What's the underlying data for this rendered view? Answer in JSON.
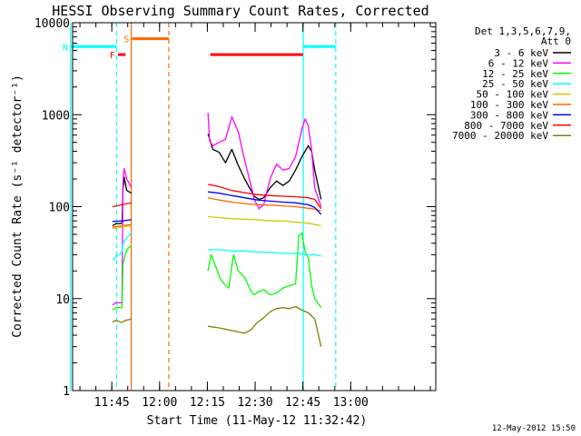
{
  "chart_data": {
    "type": "line",
    "title": "HESSI Observing Summary Count Rates, Corrected",
    "ylabel": "Corrected Count Rate (s⁻¹ detector⁻¹)",
    "xlabel": "Start Time (11-May-12 11:32:42)",
    "x_unit": "minutes since 11:32:42",
    "xlim": [
      0,
      114
    ],
    "ylim": [
      1,
      10000
    ],
    "yscale": "log",
    "xticks": [
      {
        "label": "11:45",
        "x": 12.3
      },
      {
        "label": "12:00",
        "x": 27.3
      },
      {
        "label": "12:15",
        "x": 42.3
      },
      {
        "label": "12:30",
        "x": 57.3
      },
      {
        "label": "12:45",
        "x": 72.3
      },
      {
        "label": "13:00",
        "x": 87.3
      }
    ],
    "yticks": [
      {
        "label": "1",
        "y": 1
      },
      {
        "label": "10",
        "y": 10
      },
      {
        "label": "100",
        "y": 100
      },
      {
        "label": "1000",
        "y": 1000
      },
      {
        "label": "10000",
        "y": 10000
      }
    ],
    "legend_title": "Det 1,3,5,6,7,9,\nAtt 0",
    "legend_placement": "right",
    "timestamp": "12-May-2012 15:50",
    "series": [
      {
        "name": "3 - 6 keV",
        "color": "#000000",
        "segments": [
          {
            "x": [
              12.5,
              13.5,
              15.5,
              15.8,
              16.2,
              17,
              18.5
            ],
            "y": [
              62,
              65,
              66,
              150,
              210,
              150,
              140
            ]
          },
          {
            "x": [
              42.5,
              44,
              46,
              48,
              50,
              52,
              54,
              56,
              57,
              58.5,
              60,
              62,
              64,
              66,
              68,
              70,
              72,
              74,
              75,
              76,
              78
            ],
            "y": [
              620,
              420,
              390,
              300,
              420,
              280,
              200,
              150,
              130,
              120,
              125,
              160,
              190,
              170,
              190,
              250,
              350,
              460,
              400,
              250,
              120
            ]
          }
        ]
      },
      {
        "name": "6 - 12 keV",
        "color": "#ff00ff",
        "segments": [
          {
            "x": [
              12.5,
              13.5,
              15.5,
              15.8,
              16.2,
              17,
              18.5
            ],
            "y": [
              8.5,
              9,
              9,
              180,
              260,
              200,
              160
            ]
          },
          {
            "x": [
              42.5,
              43,
              44,
              46,
              48,
              50,
              52,
              54,
              56,
              57,
              58.5,
              60,
              62,
              64,
              66,
              68,
              70,
              72,
              73,
              74,
              75,
              76,
              78
            ],
            "y": [
              1050,
              520,
              460,
              500,
              540,
              950,
              650,
              320,
              170,
              120,
              95,
              105,
              200,
              290,
              250,
              260,
              350,
              700,
              900,
              750,
              420,
              160,
              100
            ]
          }
        ]
      },
      {
        "name": "12 - 25 keV",
        "color": "#00ff00",
        "segments": [
          {
            "x": [
              12.5,
              13.5,
              15.5,
              15.8,
              17,
              18.5
            ],
            "y": [
              7.5,
              8,
              8,
              24,
              34,
              38
            ]
          },
          {
            "x": [
              42.5,
              43.5,
              45,
              46.5,
              48,
              49,
              50.5,
              52,
              54,
              56,
              57,
              58.5,
              60,
              62,
              64,
              66,
              68,
              70,
              71,
              72,
              73,
              74,
              75,
              76,
              78
            ],
            "y": [
              20,
              30,
              22,
              16,
              14,
              13,
              30,
              20,
              17,
              12,
              11,
              12,
              12.5,
              11,
              11.5,
              13,
              13.8,
              14.5,
              48,
              52,
              32,
              28,
              14,
              10,
              8
            ]
          }
        ]
      },
      {
        "name": "25 - 50 keV",
        "color": "#00ffff",
        "segments": [
          {
            "x": [
              12.5,
              13.5,
              15.5,
              15.8,
              17,
              18.5
            ],
            "y": [
              26,
              28,
              32,
              40,
              46,
              52
            ]
          },
          {
            "x": [
              42.5,
              46,
              50,
              54,
              58,
              62,
              66,
              70,
              74,
              76,
              78
            ],
            "y": [
              34,
              34,
              33,
              33,
              32,
              32,
              31,
              31,
              30,
              30,
              29
            ]
          }
        ]
      },
      {
        "name": "50 - 100 keV",
        "color": "#cccc00",
        "segments": [
          {
            "x": [
              12.5,
              15.5,
              18.5
            ],
            "y": [
              58,
              60,
              62
            ]
          },
          {
            "x": [
              42.5,
              46,
              50,
              54,
              58,
              62,
              66,
              70,
              74,
              76,
              78
            ],
            "y": [
              78,
              76,
              74,
              73,
              72,
              70,
              70,
              68,
              66,
              64,
              62
            ]
          }
        ]
      },
      {
        "name": "100 - 300 keV",
        "color": "#ff6600",
        "segments": [
          {
            "x": [
              12.5,
              15.5,
              18.5
            ],
            "y": [
              60,
              62,
              64
            ]
          },
          {
            "x": [
              42.5,
              46,
              50,
              54,
              58,
              62,
              66,
              70,
              74,
              76,
              78
            ],
            "y": [
              125,
              118,
              112,
              108,
              105,
              104,
              102,
              100,
              96,
              94,
              90
            ]
          }
        ]
      },
      {
        "name": "300 - 800 keV",
        "color": "#0000ff",
        "segments": [
          {
            "x": [
              12.5,
              15.5,
              18.5
            ],
            "y": [
              69,
              70,
              72
            ]
          },
          {
            "x": [
              42.5,
              46,
              50,
              54,
              58,
              62,
              66,
              70,
              74,
              76,
              78
            ],
            "y": [
              145,
              140,
              132,
              125,
              118,
              115,
              112,
              110,
              105,
              98,
              82
            ]
          }
        ]
      },
      {
        "name": "800 - 7000 keV",
        "color": "#ff0000",
        "segments": [
          {
            "x": [
              12.5,
              15.5,
              18.5
            ],
            "y": [
              100,
              105,
              110
            ]
          },
          {
            "x": [
              42.5,
              46,
              50,
              54,
              58,
              62,
              66,
              70,
              74,
              76,
              78
            ],
            "y": [
              175,
              165,
              150,
              142,
              135,
              132,
              130,
              128,
              125,
              120,
              95
            ]
          }
        ]
      },
      {
        "name": "7000 - 20000 keV",
        "color": "#808000",
        "segments": [
          {
            "x": [
              12.5,
              13.5,
              15.5,
              16.5,
              18.5
            ],
            "y": [
              5.5,
              5.8,
              5.5,
              5.8,
              6
            ]
          },
          {
            "x": [
              42.5,
              46,
              50,
              54,
              56,
              58,
              60,
              62,
              64,
              66,
              68,
              70,
              72,
              74,
              76,
              78
            ],
            "y": [
              5,
              4.8,
              4.5,
              4.2,
              4.6,
              5.5,
              6.2,
              7.2,
              7.8,
              8,
              7.8,
              8.2,
              7.5,
              7,
              6,
              3
            ]
          }
        ]
      }
    ],
    "flag_bars": [
      {
        "label": "F",
        "color": "#ff0000",
        "y": 4500,
        "ranges": [
          [
            14.2,
            16.6
          ],
          [
            43.2,
            72.3
          ]
        ]
      },
      {
        "label": "S",
        "color": "#ff6600",
        "y": 6700,
        "ranges": [
          [
            18.6,
            30.2
          ]
        ]
      },
      {
        "label": "N",
        "color": "#00ffff",
        "y": 5500,
        "ranges": [
          [
            -0.6,
            13.8
          ],
          [
            72.4,
            82.6
          ]
        ]
      }
    ],
    "markers": [
      {
        "color": "#00ffff",
        "style": "solid",
        "x": -0.6
      },
      {
        "color": "#00ffff",
        "style": "dashed",
        "x": 13.8
      },
      {
        "color": "#ff6600",
        "style": "solid",
        "x": 18.4
      },
      {
        "color": "#ff6600",
        "style": "dashed",
        "x": 30.2
      },
      {
        "color": "#00ffff",
        "style": "solid",
        "x": 72.4
      },
      {
        "color": "#00ffff",
        "style": "dashed",
        "x": 82.6
      }
    ]
  }
}
